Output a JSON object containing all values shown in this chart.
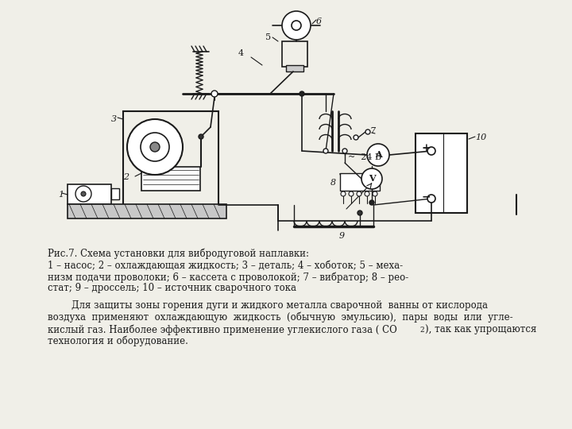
{
  "bg_color": "#f0efe8",
  "fig_width": 7.2,
  "fig_height": 5.4,
  "title_line": "Рис.7. Схема установки для вибродуговой наплавки:",
  "caption_line1": "1 – насос; 2 – охлаждающая жидкость; 3 – деталь; 4 – хоботок; 5 – меха-",
  "caption_line2": "низм подачи проволоки; 6 – кассета с проволокой; 7 – вибратор; 8 – рео-",
  "caption_line3": "стат; 9 – дроссель; 10 – источник сварочного тока",
  "para_line1": "        Для защиты зоны горения дуги и жидкого металла сварочной  ванны от кислорода",
  "para_line2": "воздуха  применяют  охлаждающую  жидкость  (обычную  эмульсию),  пары  воды  или  угле-",
  "para_line3_a": "кислый газ. Наиболее эффективно применение углекислого газа ( CO",
  "para_line3_b": "), так как упрощаются",
  "para_line4": "технология и оборудование.",
  "line_color": "#1a1a1a",
  "text_color": "#1a1a1a"
}
